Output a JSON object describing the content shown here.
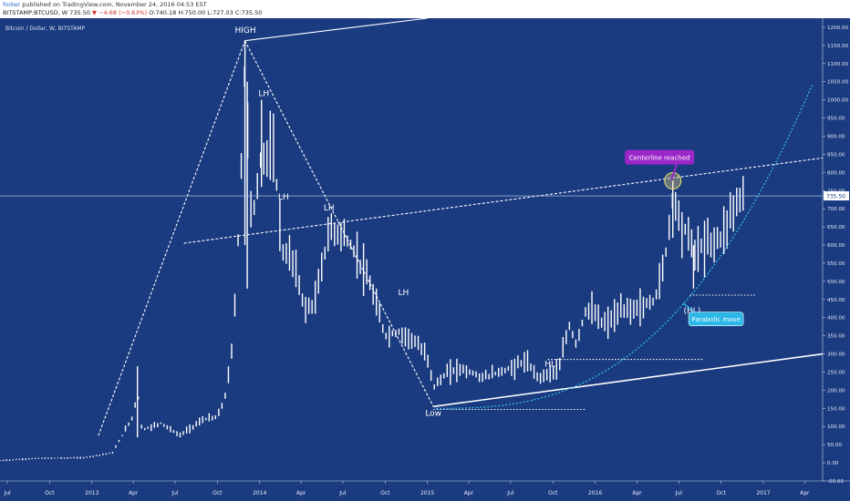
{
  "header": {
    "author": "forker",
    "published_text": "published on TradingView.com, November 24, 2016 04:53 EST",
    "symbol_line": "BITSTAMP:BTCUSD, W",
    "last": "735.50",
    "change": "▼ −4.68 (−0.63%)",
    "open": "O:740.18",
    "high": "H:750.00",
    "low": "L:727.03",
    "close": "C:735.50"
  },
  "chart_title": "Bitcoin / Dollar, W, BITSTAMP",
  "colors": {
    "background": "#1a3b80",
    "bars": "#ffffff",
    "dashed_lines": "#ffffff",
    "parabola": "#33c0ef",
    "callout_purple": "#9b27c9",
    "callout_cyan": "#2bb8e8"
  },
  "chart_data": {
    "type": "bar",
    "ylim": [
      -50,
      1225
    ],
    "yticks": [
      "1200.00",
      "1150.00",
      "1100.00",
      "1050.00",
      "1000.00",
      "950.00",
      "900.00",
      "850.00",
      "800.00",
      "750.00",
      "700.00",
      "650.00",
      "600.00",
      "550.00",
      "500.00",
      "450.00",
      "400.00",
      "350.00",
      "300.00",
      "250.00",
      "200.00",
      "150.00",
      "100.00",
      "50.00",
      "0.00",
      "-50.00"
    ],
    "xticks": [
      "Jul",
      "Oct",
      "2013",
      "Apr",
      "Jul",
      "Oct",
      "2014",
      "Apr",
      "Jul",
      "Oct",
      "2015",
      "Apr",
      "Jul",
      "Oct",
      "2016",
      "Apr",
      "Jul",
      "Oct",
      "2017",
      "Apr"
    ],
    "x_start_date": "2012-06-15",
    "x_end_date": "2017-05-10",
    "current_price": 735.5,
    "current_price_label": "735.50",
    "price_keypoints": [
      [
        "2012-06-15",
        6
      ],
      [
        "2012-09-01",
        12
      ],
      [
        "2012-12-15",
        14
      ],
      [
        "2013-02-15",
        28
      ],
      [
        "2013-04-01",
        130
      ],
      [
        "2013-04-10",
        200
      ],
      [
        "2013-04-20",
        90
      ],
      [
        "2013-06-01",
        110
      ],
      [
        "2013-07-10",
        75
      ],
      [
        "2013-09-01",
        120
      ],
      [
        "2013-10-01",
        125
      ],
      [
        "2013-10-20",
        190
      ],
      [
        "2013-11-05",
        350
      ],
      [
        "2013-11-20",
        750
      ],
      [
        "2013-11-30",
        1100
      ],
      [
        "2013-12-15",
        650
      ],
      [
        "2014-01-05",
        850
      ],
      [
        "2014-02-01",
        850
      ],
      [
        "2014-02-20",
        580
      ],
      [
        "2014-03-15",
        560
      ],
      [
        "2014-04-10",
        420
      ],
      [
        "2014-05-01",
        440
      ],
      [
        "2014-06-01",
        640
      ],
      [
        "2014-07-01",
        630
      ],
      [
        "2014-08-01",
        570
      ],
      [
        "2014-09-01",
        480
      ],
      [
        "2014-10-01",
        350
      ],
      [
        "2014-11-01",
        360
      ],
      [
        "2014-12-01",
        340
      ],
      [
        "2015-01-01",
        290
      ],
      [
        "2015-01-15",
        210
      ],
      [
        "2015-02-15",
        250
      ],
      [
        "2015-03-15",
        260
      ],
      [
        "2015-05-01",
        235
      ],
      [
        "2015-07-01",
        260
      ],
      [
        "2015-08-01",
        280
      ],
      [
        "2015-09-01",
        235
      ],
      [
        "2015-10-15",
        260
      ],
      [
        "2015-11-05",
        380
      ],
      [
        "2015-11-20",
        330
      ],
      [
        "2015-12-15",
        430
      ],
      [
        "2016-01-20",
        380
      ],
      [
        "2016-03-01",
        420
      ],
      [
        "2016-04-15",
        430
      ],
      [
        "2016-05-10",
        450
      ],
      [
        "2016-06-01",
        560
      ],
      [
        "2016-06-18",
        740
      ],
      [
        "2016-07-05",
        660
      ],
      [
        "2016-07-25",
        620
      ],
      [
        "2016-08-05",
        580
      ],
      [
        "2016-09-01",
        605
      ],
      [
        "2016-10-01",
        620
      ],
      [
        "2016-10-25",
        700
      ],
      [
        "2016-11-10",
        725
      ],
      [
        "2016-11-20",
        735.5
      ]
    ],
    "spikes": [
      [
        "2013-04-10",
        266,
        70
      ],
      [
        "2013-11-30",
        1163,
        600
      ],
      [
        "2013-12-05",
        1050,
        480
      ],
      [
        "2014-01-05",
        1000,
        760
      ],
      [
        "2016-06-18",
        777,
        620
      ],
      [
        "2016-08-02",
        600,
        480
      ]
    ],
    "annotations": [
      {
        "text": "HIGH",
        "date": "2013-12-01",
        "price": 1185
      },
      {
        "text": "LH",
        "date": "2014-01-10",
        "price": 1010
      },
      {
        "text": "LH",
        "date": "2014-02-22",
        "price": 725
      },
      {
        "text": "LH",
        "date": "2014-06-01",
        "price": 695
      },
      {
        "text": "LH",
        "date": "2014-11-10",
        "price": 462
      },
      {
        "text": "Low",
        "date": "2015-01-14",
        "price": 130
      },
      {
        "text": "HL",
        "date": "2015-09-25",
        "price": 265
      },
      {
        "text": "(HL)",
        "date": "2016-07-30",
        "price": 412
      }
    ],
    "callouts": [
      {
        "text": "Centerline reached",
        "date": "2016-05-20",
        "price": 842,
        "color": "#9b27c9"
      },
      {
        "text": "Parabolic move",
        "date": "2016-09-20",
        "price": 395,
        "color": "#2bb8e8"
      }
    ]
  }
}
